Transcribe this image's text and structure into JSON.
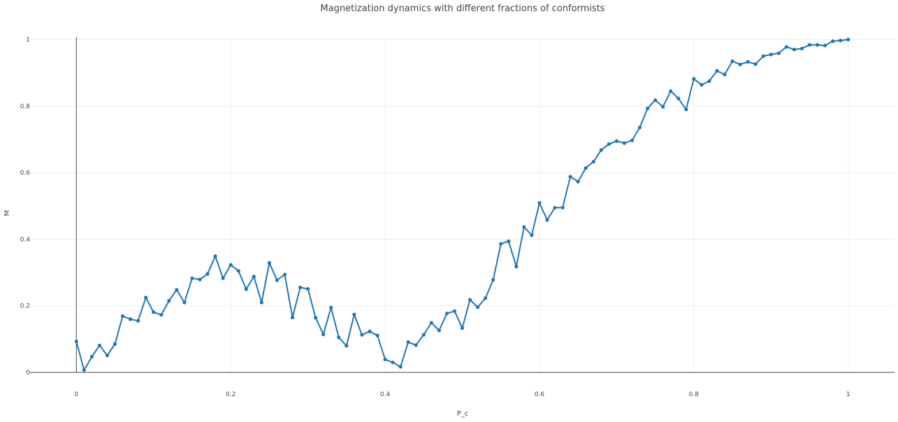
{
  "chart_data": {
    "type": "line",
    "title": "Magnetization dynamics with different fractions of conformists",
    "xlabel": "P_c",
    "ylabel": "M",
    "xlim": [
      -0.06,
      1.06
    ],
    "ylim": [
      0,
      1.06
    ],
    "xticks": [
      0,
      0.2,
      0.4,
      0.6,
      0.8,
      1
    ],
    "yticks": [
      0,
      0.2,
      0.4,
      0.6,
      0.8,
      1
    ],
    "xtick_labels": [
      "0",
      "0.2",
      "0.4",
      "0.6",
      "0.8",
      "1"
    ],
    "ytick_labels": [
      "0",
      "0.2",
      "0.4",
      "0.6",
      "0.8",
      "1"
    ],
    "grid": true,
    "markers": true,
    "series": [
      {
        "color": "#1f77b4",
        "x": [
          0,
          0.01,
          0.02,
          0.03,
          0.04,
          0.05,
          0.06,
          0.07,
          0.08,
          0.09,
          0.1,
          0.11,
          0.12,
          0.13,
          0.14,
          0.15,
          0.16,
          0.17,
          0.18,
          0.19,
          0.2,
          0.21,
          0.22,
          0.23,
          0.24,
          0.25,
          0.26,
          0.27,
          0.28,
          0.29,
          0.3,
          0.31,
          0.32,
          0.33,
          0.34,
          0.35,
          0.36,
          0.37,
          0.38,
          0.39,
          0.4,
          0.41,
          0.42,
          0.43,
          0.44,
          0.45,
          0.46,
          0.47,
          0.48,
          0.49,
          0.5,
          0.51,
          0.52,
          0.53,
          0.54,
          0.55,
          0.56,
          0.57,
          0.58,
          0.59,
          0.6,
          0.61,
          0.62,
          0.63,
          0.64,
          0.65,
          0.66,
          0.67,
          0.68,
          0.69,
          0.7,
          0.71,
          0.72,
          0.73,
          0.74,
          0.75,
          0.76,
          0.77,
          0.78,
          0.79,
          0.8,
          0.81,
          0.82,
          0.83,
          0.84,
          0.85,
          0.86,
          0.87,
          0.88,
          0.89,
          0.9,
          0.91,
          0.92,
          0.93,
          0.94,
          0.95,
          0.96,
          0.97,
          0.98,
          0.99,
          1
        ],
        "values": [
          0.093,
          0.007,
          0.047,
          0.081,
          0.051,
          0.085,
          0.169,
          0.16,
          0.155,
          0.225,
          0.181,
          0.173,
          0.215,
          0.248,
          0.21,
          0.283,
          0.279,
          0.296,
          0.349,
          0.283,
          0.323,
          0.305,
          0.25,
          0.288,
          0.21,
          0.329,
          0.277,
          0.294,
          0.165,
          0.255,
          0.251,
          0.164,
          0.114,
          0.195,
          0.105,
          0.08,
          0.174,
          0.113,
          0.123,
          0.111,
          0.039,
          0.03,
          0.017,
          0.091,
          0.082,
          0.113,
          0.149,
          0.126,
          0.177,
          0.184,
          0.133,
          0.218,
          0.196,
          0.223,
          0.278,
          0.386,
          0.394,
          0.318,
          0.437,
          0.412,
          0.509,
          0.458,
          0.495,
          0.495,
          0.588,
          0.573,
          0.614,
          0.633,
          0.668,
          0.686,
          0.695,
          0.689,
          0.697,
          0.736,
          0.793,
          0.818,
          0.798,
          0.845,
          0.823,
          0.79,
          0.882,
          0.864,
          0.875,
          0.906,
          0.895,
          0.935,
          0.925,
          0.933,
          0.926,
          0.95,
          0.955,
          0.959,
          0.978,
          0.97,
          0.973,
          0.984,
          0.984,
          0.982,
          0.995,
          0.997,
          1.0
        ]
      }
    ]
  }
}
